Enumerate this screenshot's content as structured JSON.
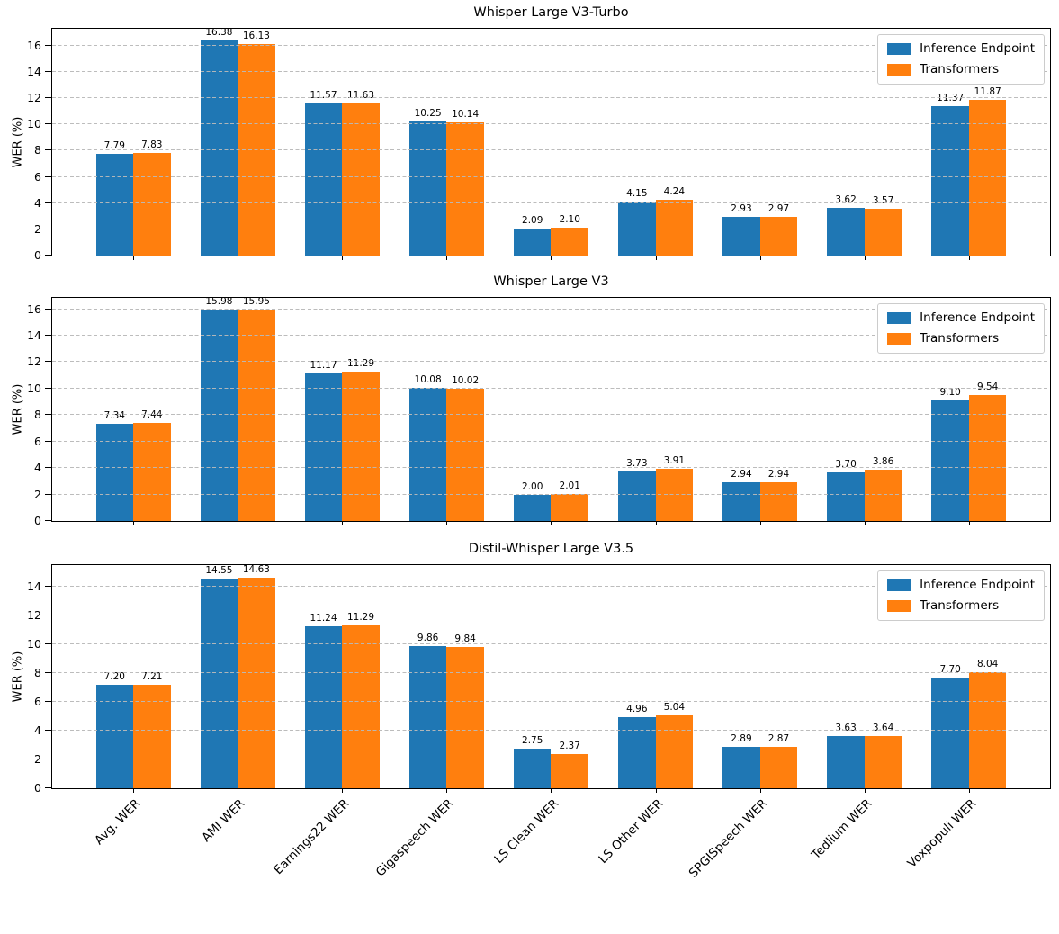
{
  "figure": {
    "background": "#ffffff",
    "grid_color": "#b9b9b9",
    "axis_color": "#000000"
  },
  "chart_data": [
    {
      "type": "bar",
      "title": "Whisper Large V3-Turbo",
      "ylabel": "WER (%)",
      "categories": [
        "Avg. WER",
        "AMI WER",
        "Earnings22 WER",
        "Gigaspeech WER",
        "LS Clean WER",
        "LS Other WER",
        "SPGISpeech WER",
        "Tedlium WER",
        "Voxpopuli WER"
      ],
      "series": [
        {
          "name": "Inference Endpoint",
          "color": "#1f77b4",
          "values": [
            7.79,
            16.38,
            11.57,
            10.25,
            2.09,
            4.15,
            2.93,
            3.62,
            11.37
          ]
        },
        {
          "name": "Transformers",
          "color": "#ff7f0e",
          "values": [
            7.83,
            16.13,
            11.63,
            10.14,
            2.1,
            4.24,
            2.97,
            3.57,
            11.87
          ]
        }
      ],
      "yticks": [
        0,
        2,
        4,
        6,
        8,
        10,
        12,
        14,
        16
      ],
      "ylim": [
        0,
        17.3
      ],
      "grid": true,
      "grid_style": "dashed",
      "legend_position": "upper right",
      "value_labels": true,
      "show_xticklabels": false
    },
    {
      "type": "bar",
      "title": "Whisper Large V3",
      "ylabel": "WER (%)",
      "categories": [
        "Avg. WER",
        "AMI WER",
        "Earnings22 WER",
        "Gigaspeech WER",
        "LS Clean WER",
        "LS Other WER",
        "SPGISpeech WER",
        "Tedlium WER",
        "Voxpopuli WER"
      ],
      "series": [
        {
          "name": "Inference Endpoint",
          "color": "#1f77b4",
          "values": [
            7.34,
            15.98,
            11.17,
            10.08,
            2.0,
            3.73,
            2.94,
            3.7,
            9.1
          ]
        },
        {
          "name": "Transformers",
          "color": "#ff7f0e",
          "values": [
            7.44,
            15.95,
            11.29,
            10.02,
            2.01,
            3.91,
            2.94,
            3.86,
            9.54
          ]
        }
      ],
      "yticks": [
        0,
        2,
        4,
        6,
        8,
        10,
        12,
        14,
        16
      ],
      "ylim": [
        0,
        16.85
      ],
      "grid": true,
      "grid_style": "dashed",
      "legend_position": "upper right",
      "value_labels": true,
      "show_xticklabels": false
    },
    {
      "type": "bar",
      "title": "Distil-Whisper Large V3.5",
      "ylabel": "WER (%)",
      "categories": [
        "Avg. WER",
        "AMI WER",
        "Earnings22 WER",
        "Gigaspeech WER",
        "LS Clean WER",
        "LS Other WER",
        "SPGISpeech WER",
        "Tedlium WER",
        "Voxpopuli WER"
      ],
      "series": [
        {
          "name": "Inference Endpoint",
          "color": "#1f77b4",
          "values": [
            7.2,
            14.55,
            11.24,
            9.86,
            2.75,
            4.96,
            2.89,
            3.63,
            7.7
          ]
        },
        {
          "name": "Transformers",
          "color": "#ff7f0e",
          "values": [
            7.21,
            14.63,
            11.29,
            9.84,
            2.37,
            5.04,
            2.87,
            3.64,
            8.04
          ]
        }
      ],
      "yticks": [
        0,
        2,
        4,
        6,
        8,
        10,
        12,
        14
      ],
      "ylim": [
        0,
        15.5
      ],
      "grid": true,
      "grid_style": "dashed",
      "legend_position": "upper right",
      "value_labels": true,
      "show_xticklabels": true
    }
  ]
}
